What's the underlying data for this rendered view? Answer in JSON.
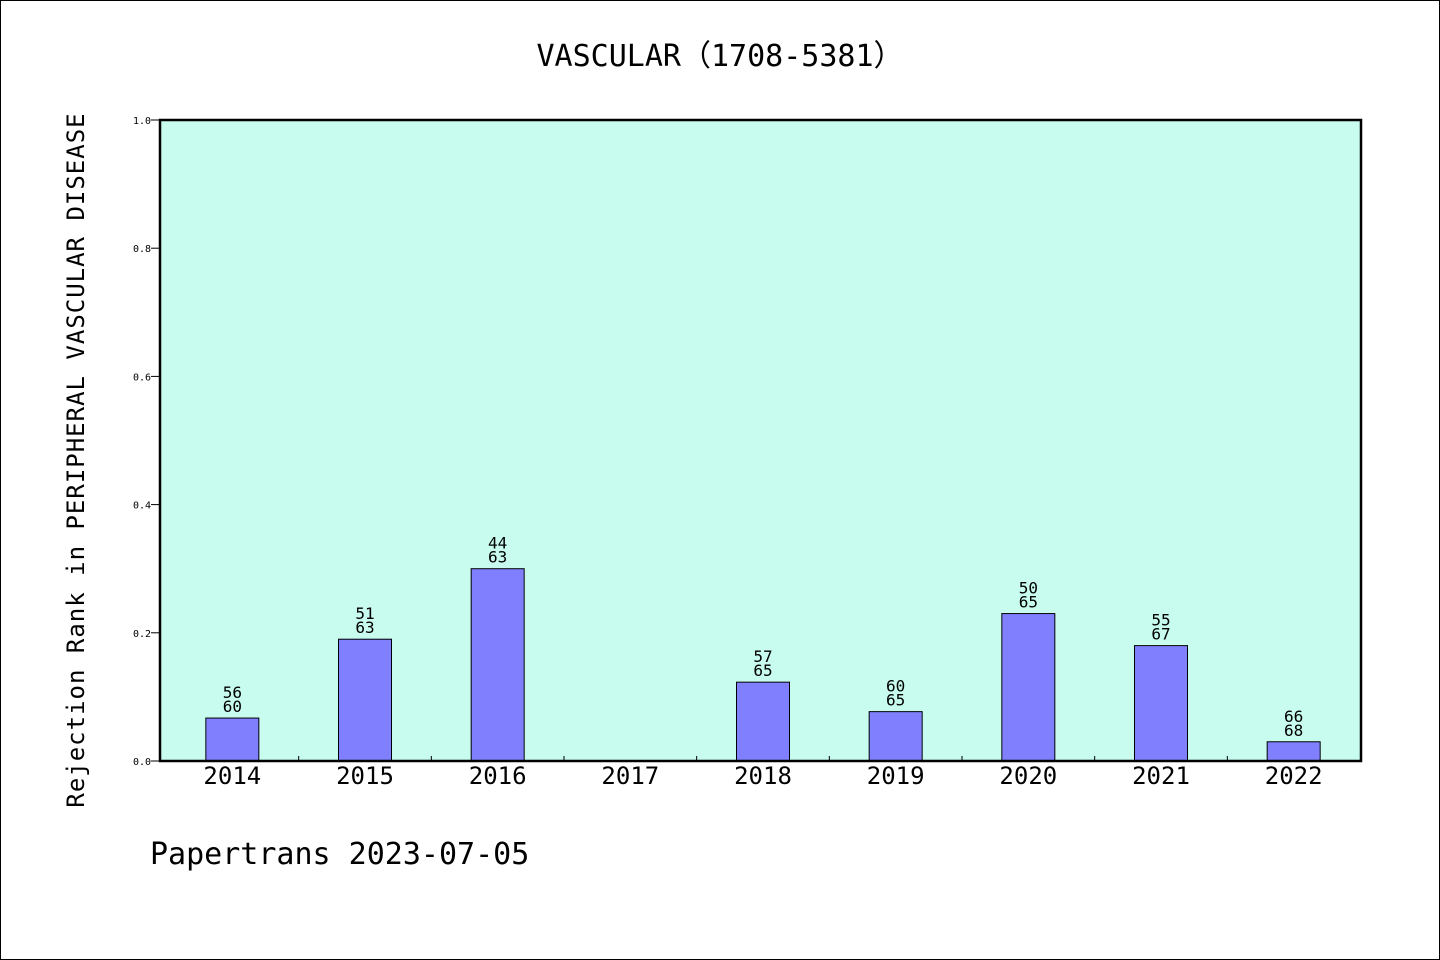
{
  "chart_data": {
    "type": "bar",
    "title": "VASCULAR（1708-5381）",
    "ylabel": "Rejection Rank in PERIPHERAL VASCULAR DISEASE",
    "xlabel": "",
    "categories": [
      "2014",
      "2015",
      "2016",
      "2017",
      "2018",
      "2019",
      "2020",
      "2021",
      "2022"
    ],
    "values": [
      0.067,
      0.19,
      0.3,
      null,
      0.123,
      0.077,
      0.23,
      0.18,
      0.03
    ],
    "bar_labels_top": [
      "56",
      "51",
      "44",
      "",
      "57",
      "60",
      "50",
      "55",
      "66"
    ],
    "bar_labels_bottom": [
      "60",
      "63",
      "63",
      "",
      "65",
      "65",
      "65",
      "67",
      "68"
    ],
    "ylim": [
      0,
      1.0
    ],
    "yticks": [
      "0.0",
      "0.2",
      "0.4",
      "0.6",
      "0.8",
      "1.0"
    ],
    "grid": false,
    "colors": {
      "plot_background": "#c8fcee",
      "bar_fill": "#8080ff",
      "bar_stroke": "#000000",
      "frame": "#000000"
    }
  },
  "footer": {
    "text": "Papertrans 2023-07-05"
  }
}
